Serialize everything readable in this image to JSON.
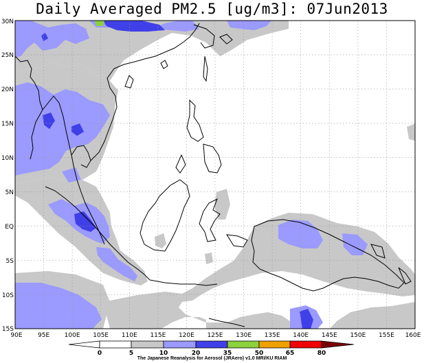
{
  "title": "Daily Averaged PM2.5 [ug/m3]: 07Jun2013",
  "lat_labels": [
    "30N",
    "25N",
    "20N",
    "15N",
    "10N",
    "5N",
    "EQ",
    "5S",
    "10S",
    "15S"
  ],
  "lon_labels": [
    "90E",
    "95E",
    "100E",
    "105E",
    "110E",
    "115E",
    "120E",
    "125E",
    "130E",
    "135E",
    "140E",
    "145E",
    "150E",
    "155E",
    "160E"
  ],
  "colorbar": {
    "ticks": [
      "0",
      "5",
      "10",
      "20",
      "35",
      "50",
      "65",
      "80"
    ],
    "colors": [
      "#ffffff",
      "#c8c8c8",
      "#9a9aff",
      "#4040e8",
      "#8cd23c",
      "#f0a000",
      "#f00000",
      "#780000"
    ]
  },
  "credit": "The Japanese Reanalysis for Aerosol (JRAero) v1.0 MRI/KU RIAM"
}
